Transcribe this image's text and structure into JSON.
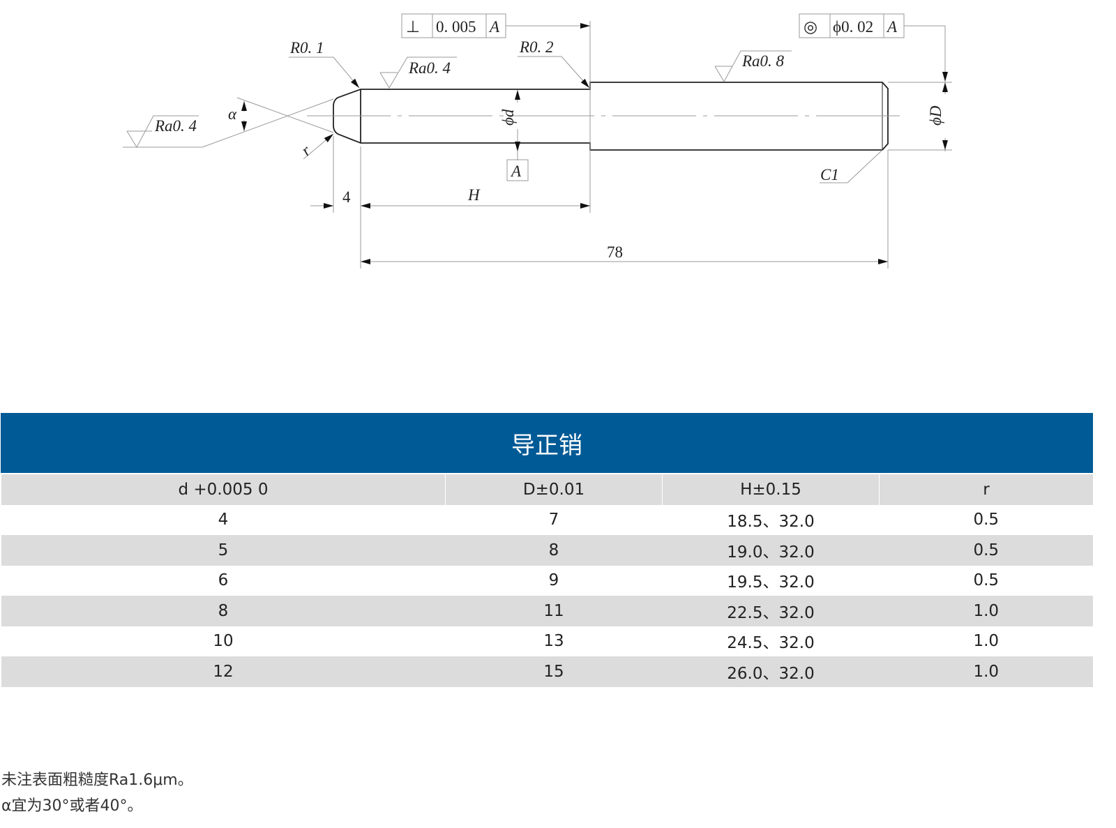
{
  "drawing": {
    "perpendicularity": {
      "symbol": "⊥",
      "tolerance": "0. 005",
      "datum": "A"
    },
    "concentricity": {
      "symbol": "◎",
      "tolerance": "ϕ0. 02",
      "datum": "A"
    },
    "labels": {
      "r01": "R0. 1",
      "r02": "R0. 2",
      "ra04_top": "Ra0. 4",
      "ra04_tip": "Ra0. 4",
      "ra08": "Ra0. 8",
      "alpha": "α",
      "r": "r",
      "phi_d": "ϕd",
      "phi_D": "ϕD",
      "datum_a": "A",
      "c1": "C1",
      "dim_4": "4",
      "dim_H": "H",
      "dim_78": "78"
    }
  },
  "table": {
    "title": "导正销",
    "headers": [
      "d +0.005  0",
      "D±0.01",
      "H±0.15",
      "r"
    ],
    "rows": [
      [
        "4",
        "7",
        "18.5、32.0",
        "0.5"
      ],
      [
        "5",
        "8",
        "19.0、32.0",
        "0.5"
      ],
      [
        "6",
        "9",
        "19.5、32.0",
        "0.5"
      ],
      [
        "8",
        "11",
        "22.5、32.0",
        "1.0"
      ],
      [
        "10",
        "13",
        "24.5、32.0",
        "1.0"
      ],
      [
        "12",
        "15",
        "26.0、32.0",
        "1.0"
      ]
    ],
    "colors": {
      "title_bg": "#005a96",
      "row_alt": "#dcdcdc"
    }
  },
  "notes": [
    "未注表面粗糙度Ra1.6μm。",
    "α宜为30°或者40°。"
  ]
}
